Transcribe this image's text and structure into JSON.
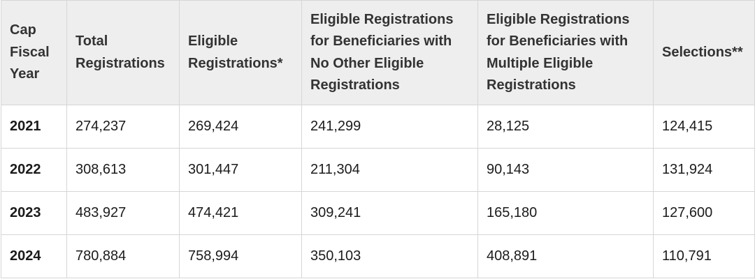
{
  "table": {
    "headers": [
      "Cap Fiscal Year",
      "Total Registrations",
      "Eligible Registrations*",
      "Eligible Registrations for Beneficiaries with No Other Eligible Registrations",
      "Eligible Registrations for Beneficiaries with Multiple Eligible Registrations",
      "Selections**"
    ],
    "rows": [
      [
        "2021",
        "274,237",
        "269,424",
        "241,299",
        "28,125",
        "124,415"
      ],
      [
        "2022",
        "308,613",
        "301,447",
        "211,304",
        "90,143",
        "131,924"
      ],
      [
        "2023",
        "483,927",
        "474,421",
        "309,241",
        "165,180",
        "127,600"
      ],
      [
        "2024",
        "780,884",
        "758,994",
        "350,103",
        "408,891",
        "110,791"
      ]
    ]
  }
}
